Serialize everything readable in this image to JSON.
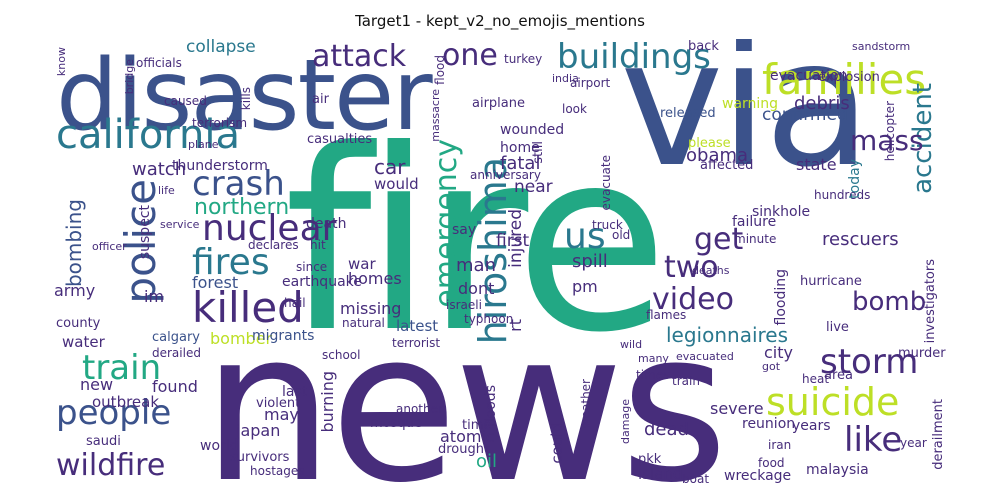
{
  "title": "Target1 - kept_v2_no_emojis_mentions",
  "colors": {
    "big_teal": "#22a884",
    "dark_blue": "#3b528b",
    "purple": "#472d7b",
    "yellow_green": "#bddf26",
    "green": "#7ad151",
    "mid_teal": "#2a788e"
  },
  "words": [
    {
      "text": "news",
      "size": "xl"
    },
    {
      "text": "fire",
      "size": "xl"
    },
    {
      "text": "via",
      "size": "xl"
    },
    {
      "text": "disaster",
      "size": "l"
    },
    {
      "text": "california",
      "size": "m"
    },
    {
      "text": "families",
      "size": "m"
    },
    {
      "text": "buildings",
      "size": "m"
    },
    {
      "text": "attack",
      "size": "m"
    },
    {
      "text": "one",
      "size": "m"
    },
    {
      "text": "collapse",
      "size": "s"
    },
    {
      "text": "crash",
      "size": "m"
    },
    {
      "text": "police",
      "size": "m"
    },
    {
      "text": "nuclear",
      "size": "m"
    },
    {
      "text": "killed",
      "size": "m"
    },
    {
      "text": "fires",
      "size": "m"
    },
    {
      "text": "people",
      "size": "m"
    },
    {
      "text": "train",
      "size": "m"
    },
    {
      "text": "hiroshima",
      "size": "m"
    },
    {
      "text": "emergency",
      "size": "m"
    },
    {
      "text": "us",
      "size": "m"
    },
    {
      "text": "suicide",
      "size": "m"
    },
    {
      "text": "storm",
      "size": "m"
    },
    {
      "text": "like",
      "size": "m"
    },
    {
      "text": "wildfire",
      "size": "m"
    },
    {
      "text": "video",
      "size": "m"
    },
    {
      "text": "bomb",
      "size": "m"
    },
    {
      "text": "two",
      "size": "m"
    },
    {
      "text": "accident",
      "size": "m"
    },
    {
      "text": "mass",
      "size": "m"
    },
    {
      "text": "get",
      "size": "m"
    },
    {
      "text": "bombing",
      "size": "s"
    },
    {
      "text": "northern",
      "size": "s"
    },
    {
      "text": "watch",
      "size": "s"
    },
    {
      "text": "thunderstorm",
      "size": "s"
    },
    {
      "text": "fatal",
      "size": "s"
    },
    {
      "text": "car",
      "size": "s"
    },
    {
      "text": "would",
      "size": "s"
    },
    {
      "text": "near",
      "size": "s"
    },
    {
      "text": "obama",
      "size": "s"
    },
    {
      "text": "confirmed",
      "size": "s"
    },
    {
      "text": "debris",
      "size": "s"
    },
    {
      "text": "evacuation",
      "size": "s"
    },
    {
      "text": "warning",
      "size": "s"
    },
    {
      "text": "state",
      "size": "s"
    },
    {
      "text": "hundreds",
      "size": "s"
    },
    {
      "text": "rescuers",
      "size": "s"
    },
    {
      "text": "today",
      "size": "s"
    },
    {
      "text": "sinkhole",
      "size": "s"
    },
    {
      "text": "helicopter",
      "size": "s"
    },
    {
      "text": "explosion",
      "size": "s"
    },
    {
      "text": "released",
      "size": "s"
    },
    {
      "text": "please",
      "size": "s"
    },
    {
      "text": "affected",
      "size": "s"
    },
    {
      "text": "home",
      "size": "s"
    },
    {
      "text": "wounded",
      "size": "s"
    },
    {
      "text": "casualties",
      "size": "s"
    },
    {
      "text": "injured",
      "size": "s"
    },
    {
      "text": "still",
      "size": "s"
    },
    {
      "text": "rt",
      "size": "s"
    },
    {
      "text": "anniversary",
      "size": "s"
    },
    {
      "text": "evacuate",
      "size": "s"
    },
    {
      "text": "first",
      "size": "s"
    },
    {
      "text": "man",
      "size": "s"
    },
    {
      "text": "homes",
      "size": "s"
    },
    {
      "text": "war",
      "size": "s"
    },
    {
      "text": "earthquake",
      "size": "s"
    },
    {
      "text": "forest",
      "size": "s"
    },
    {
      "text": "army",
      "size": "s"
    },
    {
      "text": "im",
      "size": "s"
    },
    {
      "text": "spill",
      "size": "s"
    },
    {
      "text": "pm",
      "size": "s"
    },
    {
      "text": "dont",
      "size": "s"
    },
    {
      "text": "missing",
      "size": "s"
    },
    {
      "text": "latest",
      "size": "s"
    },
    {
      "text": "legionnaires",
      "size": "s"
    },
    {
      "text": "flooding",
      "size": "s"
    },
    {
      "text": "hurricane",
      "size": "s"
    },
    {
      "text": "investigators",
      "size": "s"
    },
    {
      "text": "live",
      "size": "s"
    },
    {
      "text": "city",
      "size": "s"
    },
    {
      "text": "murder",
      "size": "s"
    },
    {
      "text": "bomber",
      "size": "s"
    },
    {
      "text": "migrants",
      "size": "s"
    },
    {
      "text": "water",
      "size": "s"
    },
    {
      "text": "calgary",
      "size": "s"
    },
    {
      "text": "new",
      "size": "s"
    },
    {
      "text": "found",
      "size": "s"
    },
    {
      "text": "outbreak",
      "size": "s"
    },
    {
      "text": "saudi",
      "size": "s"
    },
    {
      "text": "japan",
      "size": "s"
    },
    {
      "text": "may",
      "size": "s"
    },
    {
      "text": "world",
      "size": "s"
    },
    {
      "text": "survivors",
      "size": "s"
    },
    {
      "text": "hostages",
      "size": "s"
    },
    {
      "text": "burning",
      "size": "s"
    },
    {
      "text": "atomic",
      "size": "s"
    },
    {
      "text": "floods",
      "size": "s"
    },
    {
      "text": "oil",
      "size": "s"
    },
    {
      "text": "time",
      "size": "s"
    },
    {
      "text": "drought",
      "size": "s"
    },
    {
      "text": "dead",
      "size": "s"
    },
    {
      "text": "could",
      "size": "s"
    },
    {
      "text": "weather",
      "size": "s"
    },
    {
      "text": "island",
      "size": "s"
    },
    {
      "text": "pkk",
      "size": "s"
    },
    {
      "text": "severe",
      "size": "s"
    },
    {
      "text": "reunion",
      "size": "s"
    },
    {
      "text": "years",
      "size": "s"
    },
    {
      "text": "malaysia",
      "size": "s"
    },
    {
      "text": "wreckage",
      "size": "s"
    },
    {
      "text": "derailment",
      "size": "s"
    },
    {
      "text": "area",
      "size": "s"
    },
    {
      "text": "heat",
      "size": "s"
    },
    {
      "text": "year",
      "size": "s"
    },
    {
      "text": "food",
      "size": "s"
    },
    {
      "text": "iran",
      "size": "s"
    },
    {
      "text": "boat",
      "size": "s"
    },
    {
      "text": "flames",
      "size": "s"
    },
    {
      "text": "typhoon",
      "size": "s"
    },
    {
      "text": "mosque",
      "size": "s"
    },
    {
      "text": "school",
      "size": "s"
    },
    {
      "text": "terrorist",
      "size": "s"
    },
    {
      "text": "natural",
      "size": "s"
    },
    {
      "text": "death",
      "size": "s"
    },
    {
      "text": "hit",
      "size": "s"
    },
    {
      "text": "declares",
      "size": "s"
    },
    {
      "text": "since",
      "size": "s"
    },
    {
      "text": "hail",
      "size": "s"
    },
    {
      "text": "last",
      "size": "s"
    },
    {
      "text": "violent",
      "size": "s"
    },
    {
      "text": "derailed",
      "size": "s"
    },
    {
      "text": "county",
      "size": "s"
    },
    {
      "text": "suspect",
      "size": "s"
    },
    {
      "text": "kills",
      "size": "s"
    },
    {
      "text": "caused",
      "size": "s"
    },
    {
      "text": "officials",
      "size": "s"
    },
    {
      "text": "terrorism",
      "size": "s"
    },
    {
      "text": "air",
      "size": "s"
    },
    {
      "text": "airplane",
      "size": "s"
    },
    {
      "text": "massacre",
      "size": "s"
    },
    {
      "text": "flood",
      "size": "s"
    },
    {
      "text": "turkey",
      "size": "s"
    },
    {
      "text": "india",
      "size": "s"
    },
    {
      "text": "airport",
      "size": "s"
    },
    {
      "text": "look",
      "size": "s"
    },
    {
      "text": "back",
      "size": "s"
    },
    {
      "text": "sandstorm",
      "size": "s"
    },
    {
      "text": "say",
      "size": "s"
    },
    {
      "text": "devastation",
      "size": "s"
    },
    {
      "text": "old",
      "size": "s"
    },
    {
      "text": "truck",
      "size": "s"
    },
    {
      "text": "deaths",
      "size": "s"
    },
    {
      "text": "failure",
      "size": "s"
    },
    {
      "text": "minute",
      "size": "s"
    },
    {
      "text": "evacuated",
      "size": "s"
    },
    {
      "text": "many",
      "size": "s"
    },
    {
      "text": "times",
      "size": "s"
    },
    {
      "text": "got",
      "size": "s"
    },
    {
      "text": "sue",
      "size": "s"
    },
    {
      "text": "least",
      "size": "s"
    },
    {
      "text": "bus",
      "size": "s"
    },
    {
      "text": "israeli",
      "size": "s"
    },
    {
      "text": "plane",
      "size": "s"
    },
    {
      "text": "bridge",
      "size": "s"
    },
    {
      "text": "know",
      "size": "s"
    },
    {
      "text": "life",
      "size": "s"
    },
    {
      "text": "service",
      "size": "s"
    },
    {
      "text": "officer",
      "size": "s"
    },
    {
      "text": "cyclone",
      "size": "s"
    },
    {
      "text": "wild",
      "size": "s"
    },
    {
      "text": "attacked",
      "size": "s"
    },
    {
      "text": "razed",
      "size": "s"
    },
    {
      "text": "another",
      "size": "s"
    },
    {
      "text": "damage",
      "size": "s"
    },
    {
      "text": "train",
      "size": "s"
    },
    {
      "text": "chemical",
      "size": "s"
    }
  ]
}
